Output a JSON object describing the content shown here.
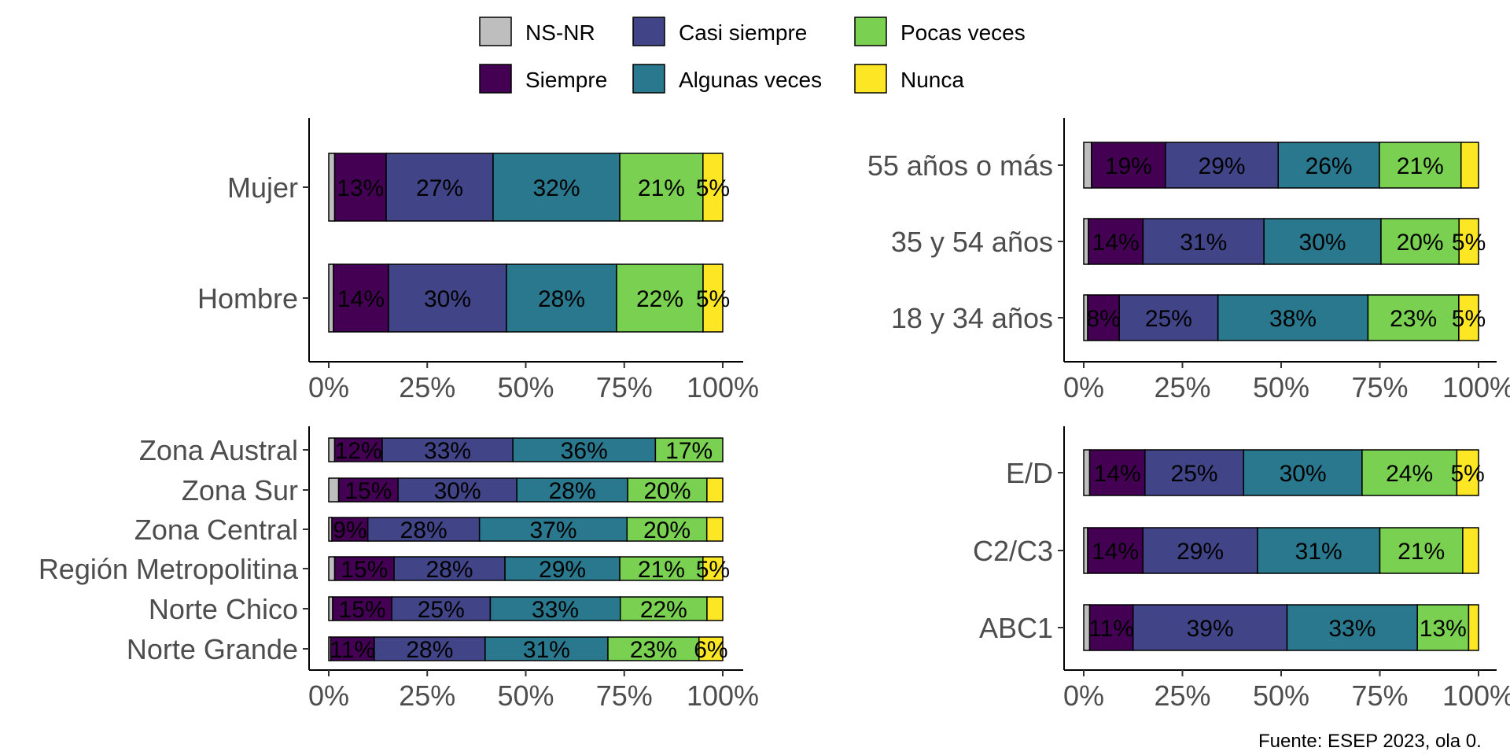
{
  "legend": {
    "items": [
      {
        "key": "nsnr",
        "label": "NS-NR",
        "color": "#bebebe"
      },
      {
        "key": "siempre",
        "label": "Siempre",
        "color": "#440154"
      },
      {
        "key": "casi",
        "label": "Casi siempre",
        "color": "#414487"
      },
      {
        "key": "algunas",
        "label": "Algunas veces",
        "color": "#2a788e"
      },
      {
        "key": "pocas",
        "label": "Pocas veces",
        "color": "#7ad151"
      },
      {
        "key": "nunca",
        "label": "Nunca",
        "color": "#fde725"
      }
    ]
  },
  "caption": "Fuente: ESEP 2023, ola 0.",
  "chart_data": [
    {
      "type": "bar",
      "orientation": "horizontal",
      "stacked": "percent",
      "categories": [
        "Mujer",
        "Hombre"
      ],
      "series": [
        {
          "name": "NS-NR",
          "values": [
            1.5,
            1.2
          ]
        },
        {
          "name": "Siempre",
          "values": [
            13,
            14
          ]
        },
        {
          "name": "Casi siempre",
          "values": [
            27,
            30
          ]
        },
        {
          "name": "Algunas veces",
          "values": [
            32,
            28
          ]
        },
        {
          "name": "Pocas veces",
          "values": [
            21,
            22
          ]
        },
        {
          "name": "Nunca",
          "values": [
            5,
            5
          ]
        }
      ],
      "segment_labels": [
        [
          "",
          "13%",
          "27%",
          "32%",
          "21%",
          "5%"
        ],
        [
          "",
          "14%",
          "30%",
          "28%",
          "22%",
          "5%"
        ]
      ],
      "x_ticks": [
        "0%",
        "25%",
        "50%",
        "75%",
        "100%"
      ],
      "xlim": [
        0,
        100
      ]
    },
    {
      "type": "bar",
      "orientation": "horizontal",
      "stacked": "percent",
      "categories": [
        "55 años o más",
        "35 y 54 años",
        "18 y 34 años"
      ],
      "series": [
        {
          "name": "NS-NR",
          "values": [
            2,
            1.2,
            1
          ]
        },
        {
          "name": "Siempre",
          "values": [
            19,
            14,
            8
          ]
        },
        {
          "name": "Casi siempre",
          "values": [
            29,
            31,
            25
          ]
        },
        {
          "name": "Algunas veces",
          "values": [
            26,
            30,
            38
          ]
        },
        {
          "name": "Pocas veces",
          "values": [
            21,
            20,
            23
          ]
        },
        {
          "name": "Nunca",
          "values": [
            4.5,
            5,
            5
          ]
        }
      ],
      "segment_labels": [
        [
          "",
          "19%",
          "29%",
          "26%",
          "21%",
          ""
        ],
        [
          "",
          "14%",
          "31%",
          "30%",
          "20%",
          "5%"
        ],
        [
          "",
          "8%",
          "25%",
          "38%",
          "23%",
          "5%"
        ]
      ],
      "x_ticks": [
        "0%",
        "25%",
        "50%",
        "75%",
        "100%"
      ],
      "xlim": [
        0,
        100
      ]
    },
    {
      "type": "bar",
      "orientation": "horizontal",
      "stacked": "percent",
      "categories": [
        "Zona Austral",
        "Zona Sur",
        "Zona Central",
        "Región Metropolitina",
        "Norte Chico",
        "Norte Grande"
      ],
      "series": [
        {
          "name": "NS-NR",
          "values": [
            1.5,
            2.5,
            0.8,
            1.5,
            1,
            0.5
          ]
        },
        {
          "name": "Siempre",
          "values": [
            12,
            15,
            9,
            15,
            15,
            11
          ]
        },
        {
          "name": "Casi siempre",
          "values": [
            33,
            30,
            28,
            28,
            25,
            28
          ]
        },
        {
          "name": "Algunas veces",
          "values": [
            36,
            28,
            37,
            29,
            33,
            31
          ]
        },
        {
          "name": "Pocas veces",
          "values": [
            17,
            20,
            20,
            21,
            22,
            23
          ]
        },
        {
          "name": "Nunca",
          "values": [
            0,
            4,
            4,
            5,
            4,
            6
          ]
        }
      ],
      "segment_labels": [
        [
          "",
          "12%",
          "33%",
          "36%",
          "17%",
          ""
        ],
        [
          "",
          "15%",
          "30%",
          "28%",
          "20%",
          ""
        ],
        [
          "",
          "9%",
          "28%",
          "37%",
          "20%",
          ""
        ],
        [
          "",
          "15%",
          "28%",
          "29%",
          "21%",
          "5%"
        ],
        [
          "",
          "15%",
          "25%",
          "33%",
          "22%",
          ""
        ],
        [
          "",
          "11%",
          "28%",
          "31%",
          "23%",
          "6%"
        ]
      ],
      "x_ticks": [
        "0%",
        "25%",
        "50%",
        "75%",
        "100%"
      ],
      "xlim": [
        0,
        100
      ]
    },
    {
      "type": "bar",
      "orientation": "horizontal",
      "stacked": "percent",
      "categories": [
        "E/D",
        "C2/C3",
        "ABC1"
      ],
      "series": [
        {
          "name": "NS-NR",
          "values": [
            1.5,
            1,
            1.5
          ]
        },
        {
          "name": "Siempre",
          "values": [
            14,
            14,
            11
          ]
        },
        {
          "name": "Casi siempre",
          "values": [
            25,
            29,
            39
          ]
        },
        {
          "name": "Algunas veces",
          "values": [
            30,
            31,
            33
          ]
        },
        {
          "name": "Pocas veces",
          "values": [
            24,
            21,
            13
          ]
        },
        {
          "name": "Nunca",
          "values": [
            5.5,
            4,
            2.5
          ]
        }
      ],
      "segment_labels": [
        [
          "",
          "14%",
          "25%",
          "30%",
          "24%",
          "5%"
        ],
        [
          "",
          "14%",
          "29%",
          "31%",
          "21%",
          ""
        ],
        [
          "",
          "11%",
          "39%",
          "33%",
          "13%",
          ""
        ]
      ],
      "x_ticks": [
        "0%",
        "25%",
        "50%",
        "75%",
        "100%"
      ],
      "xlim": [
        0,
        100
      ]
    }
  ]
}
